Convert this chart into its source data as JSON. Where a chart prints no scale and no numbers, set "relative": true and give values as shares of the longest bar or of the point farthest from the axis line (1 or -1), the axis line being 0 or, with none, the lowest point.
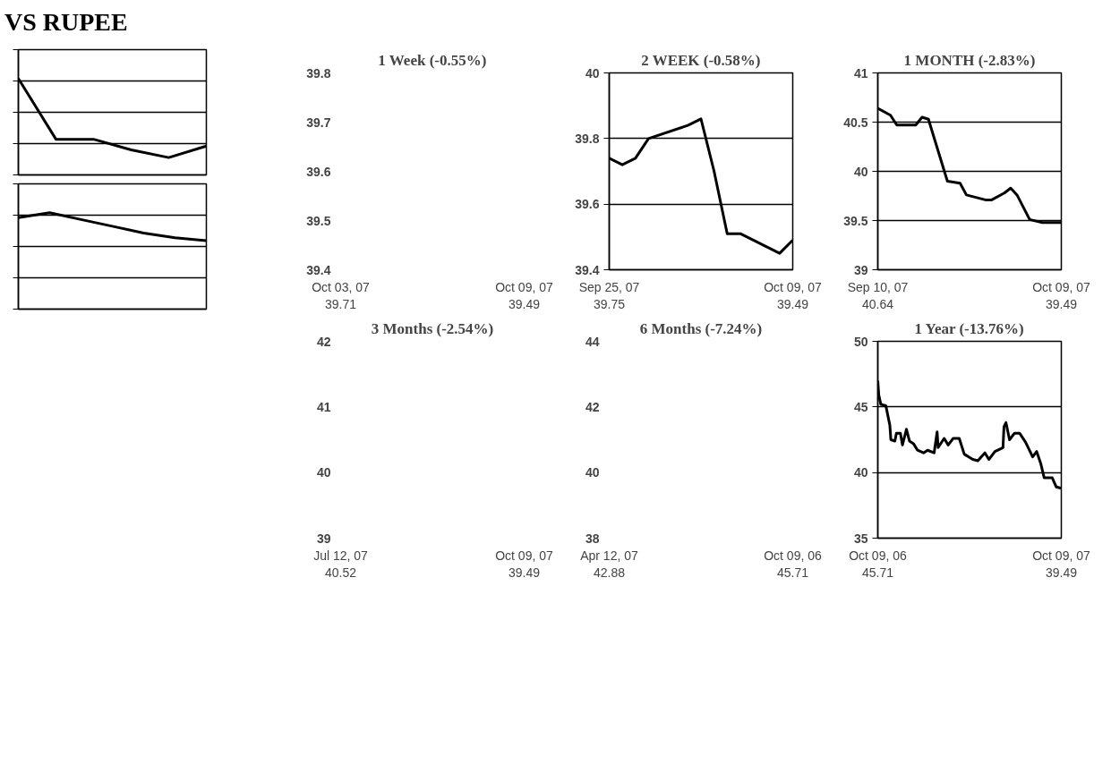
{
  "chart_data": [
    {
      "type": "other",
      "title": "VS RUPEE"
    },
    {
      "type": "line",
      "relative": true,
      "categories": [
        null,
        null,
        null,
        null,
        null,
        null
      ],
      "grid": "y",
      "series": [
        {
          "color": "#000000",
          "values": [
            1,
            0.37,
            0.37,
            0.26,
            0.18,
            0.3
          ]
        }
      ]
    },
    {
      "type": "line",
      "relative": true,
      "categories": [
        null,
        null,
        null,
        null,
        null,
        null,
        null
      ],
      "grid": "y",
      "series": [
        {
          "color": "#000000",
          "values": [
            0.95,
            1,
            0.93,
            0.86,
            0.79,
            0.74,
            0.71
          ]
        }
      ]
    },
    {
      "type": "line",
      "title": "1 Week (-0.55%)",
      "categories": [
        "Oct 03, 07\n39.71",
        "Oct 09, 07\n39.49"
      ],
      "ylim": [
        39.4,
        39.8
      ],
      "yticks": [
        39.4,
        39.5,
        39.6,
        39.7,
        39.8
      ]
    },
    {
      "type": "line",
      "title": "2 WEEK (-0.58%)",
      "grid": "y",
      "xlim": [
        "2007-09-25",
        "2007-10-09"
      ],
      "xticks": [
        {
          "value": "2007-09-25",
          "label": "Sep 25, 07\n39.75"
        },
        {
          "value": "2007-10-09",
          "label": "Oct 09, 07\n39.49"
        }
      ],
      "ylim": [
        39.4,
        40
      ],
      "yticks": [
        39.4,
        39.6,
        39.8,
        40
      ],
      "x": [
        "2007-09-25",
        "2007-09-26",
        "2007-09-27",
        "2007-09-28",
        "2007-10-01",
        "2007-10-02",
        "2007-10-03",
        "2007-10-04",
        "2007-10-05",
        "2007-10-08",
        "2007-10-09"
      ],
      "series": [
        {
          "color": "#000000",
          "values": [
            39.74,
            39.72,
            39.74,
            39.8,
            39.84,
            39.86,
            39.7,
            39.51,
            39.51,
            39.45,
            39.49
          ]
        }
      ]
    },
    {
      "type": "line",
      "title": "1 MONTH (-2.83%)",
      "grid": "y",
      "xlim": [
        "2007-09-10",
        "2007-10-09"
      ],
      "xticks": [
        {
          "value": "2007-09-10",
          "label": "Sep 10, 07\n40.64"
        },
        {
          "value": "2007-10-09",
          "label": "Oct 09, 07\n39.49"
        }
      ],
      "ylim": [
        39,
        41
      ],
      "yticks": [
        39,
        39.5,
        40,
        40.5,
        41
      ],
      "x": [
        "2007-09-10",
        "2007-09-12",
        "2007-09-13",
        "2007-09-16",
        "2007-09-17",
        "2007-09-18",
        "2007-09-21",
        "2007-09-23",
        "2007-09-24",
        "2007-09-27",
        "2007-09-28",
        "2007-09-30",
        "2007-10-01",
        "2007-10-02",
        "2007-10-04",
        "2007-10-06",
        "2007-10-09"
      ],
      "series": [
        {
          "color": "#000000",
          "values": [
            40.64,
            40.57,
            40.47,
            40.47,
            40.55,
            40.53,
            39.9,
            39.88,
            39.76,
            39.71,
            39.71,
            39.78,
            39.83,
            39.76,
            39.51,
            39.48,
            39.48
          ]
        }
      ]
    },
    {
      "type": "line",
      "title": "3 Months (-2.54%)",
      "categories": [
        "Jul 12, 07\n40.52",
        "Oct 09, 07\n39.49"
      ],
      "ylim": [
        39,
        42
      ],
      "yticks": [
        39,
        40,
        41,
        42
      ]
    },
    {
      "type": "line",
      "title": "6 Months (-7.24%)",
      "categories": [
        "Apr 12, 07\n42.88",
        "Oct 09, 06\n45.71"
      ],
      "ylim": [
        38,
        44
      ],
      "yticks": [
        38,
        40,
        42,
        44
      ]
    },
    {
      "type": "line",
      "title": "1 Year (-13.76%)",
      "grid": "y",
      "xlim": [
        "2006-10-09",
        "2007-10-09"
      ],
      "xticks": [
        {
          "value": "2006-10-09",
          "label": "Oct 09, 06\n45.71"
        },
        {
          "value": "2007-10-09",
          "label": "Oct 09, 07\n39.49"
        }
      ],
      "ylim": [
        35,
        50
      ],
      "yticks": [
        35,
        40,
        45,
        50
      ],
      "x": [
        "2006-10-09",
        "2006-10-11",
        "2006-10-15",
        "2006-10-25",
        "2006-11-02",
        "2006-11-04",
        "2006-11-12",
        "2006-11-15",
        "2006-11-23",
        "2006-11-27",
        "2006-12-05",
        "2006-12-11",
        "2006-12-19",
        "2006-12-27",
        "2007-01-08",
        "2007-01-16",
        "2007-01-29",
        "2007-02-04",
        "2007-02-06",
        "2007-02-18",
        "2007-02-26",
        "2007-03-08",
        "2007-03-20",
        "2007-03-30",
        "2007-04-16",
        "2007-04-26",
        "2007-05-10",
        "2007-05-18",
        "2007-05-30",
        "2007-06-15",
        "2007-06-17",
        "2007-06-21",
        "2007-06-28",
        "2007-07-08",
        "2007-07-18",
        "2007-07-30",
        "2007-08-13",
        "2007-08-21",
        "2007-08-29",
        "2007-09-05",
        "2007-09-21",
        "2007-09-29",
        "2007-10-09"
      ],
      "series": [
        {
          "color": "#000000",
          "values": [
            47.0,
            45.9,
            45.2,
            45.1,
            43.6,
            42.5,
            42.4,
            43.0,
            43.0,
            42.1,
            43.3,
            42.4,
            42.2,
            41.7,
            41.5,
            41.7,
            41.5,
            43.1,
            41.9,
            42.6,
            42.1,
            42.6,
            42.6,
            41.4,
            41.0,
            40.9,
            41.5,
            41.0,
            41.6,
            41.9,
            43.5,
            43.8,
            42.5,
            43.0,
            43.0,
            42.3,
            41.2,
            41.6,
            40.7,
            39.6,
            39.6,
            38.9,
            38.8
          ]
        }
      ]
    }
  ]
}
